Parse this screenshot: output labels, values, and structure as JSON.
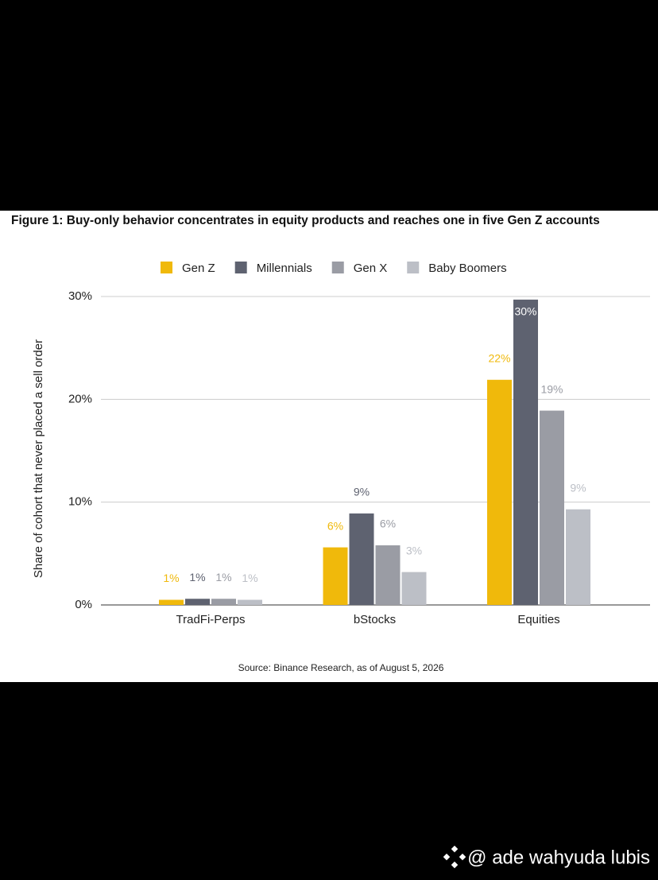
{
  "chart_data": {
    "type": "bar",
    "title": "Figure 1: Buy-only behavior concentrates in equity products and reaches one in five Gen Z accounts",
    "y_label": "Share of cohort that never placed a sell order",
    "source": "Source: Binance Research, as of August 5, 2026",
    "categories": [
      "TradFi-Perps",
      "bStocks",
      "Equities"
    ],
    "series": [
      {
        "name": "Gen Z",
        "color": "#f0b90b",
        "values": [
          0.5,
          5.6,
          21.9
        ],
        "value_labels": [
          "1%",
          "6%",
          "22%"
        ]
      },
      {
        "name": "Millennials",
        "color": "#5e6270",
        "values": [
          0.6,
          8.9,
          29.7
        ],
        "value_labels": [
          "1%",
          "9%",
          "30%"
        ]
      },
      {
        "name": "Gen X",
        "color": "#9a9ca4",
        "values": [
          0.6,
          5.8,
          18.9
        ],
        "value_labels": [
          "1%",
          "6%",
          "19%"
        ]
      },
      {
        "name": "Baby Boomers",
        "color": "#bcbfc6",
        "values": [
          0.5,
          3.2,
          9.3
        ],
        "value_labels": [
          "1%",
          "3%",
          "9%"
        ]
      }
    ],
    "ylim": [
      0,
      30
    ],
    "yticks": [
      {
        "value": 0,
        "label": "0%"
      },
      {
        "value": 10,
        "label": "10%"
      },
      {
        "value": 20,
        "label": "20%"
      },
      {
        "value": 30,
        "label": "30%"
      }
    ],
    "grid": true,
    "legend": "top"
  },
  "watermark": "@ ade wahyuda lubis"
}
